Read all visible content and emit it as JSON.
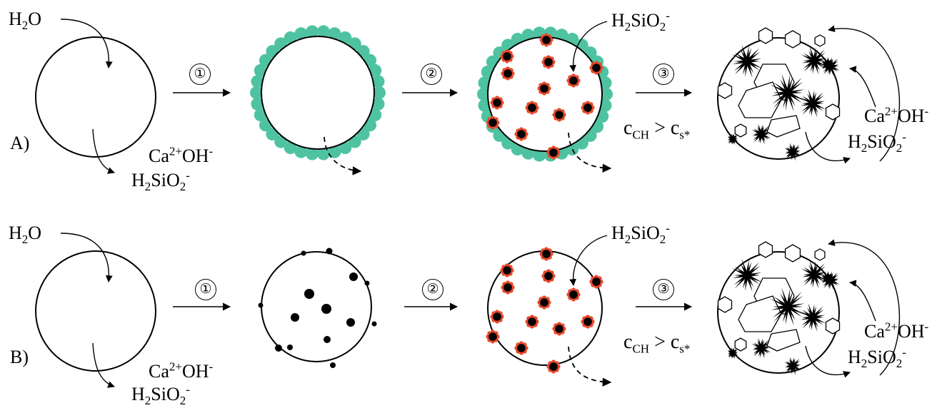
{
  "colors": {
    "line": "#000000",
    "surface_layer": "#4fc3a1",
    "nucleus_petal": "#e8492a",
    "nucleus_core": "#000000",
    "background": "#ffffff"
  },
  "rows": [
    {
      "id": "A",
      "label": "A)",
      "steps": [
        {
          "number": "①"
        },
        {
          "number": "②"
        },
        {
          "number": "③"
        }
      ]
    },
    {
      "id": "B",
      "label": "B)",
      "steps": [
        {
          "number": "①"
        },
        {
          "number": "②"
        },
        {
          "number": "③"
        }
      ]
    }
  ],
  "species": {
    "water": {
      "main": "H",
      "sub": "2",
      "tail": "O"
    },
    "calcium": {
      "main": "Ca",
      "sup": "2+"
    },
    "hydroxide": {
      "main": "OH",
      "sup": "-"
    },
    "silicate": {
      "h": "H",
      "h_sub": "2",
      "si": "SiO",
      "o_sub": "2",
      "sup": "-"
    }
  },
  "condition": {
    "left": "c",
    "left_sub": "CH",
    "op": ">",
    "right": "c",
    "right_sub": "s*"
  }
}
